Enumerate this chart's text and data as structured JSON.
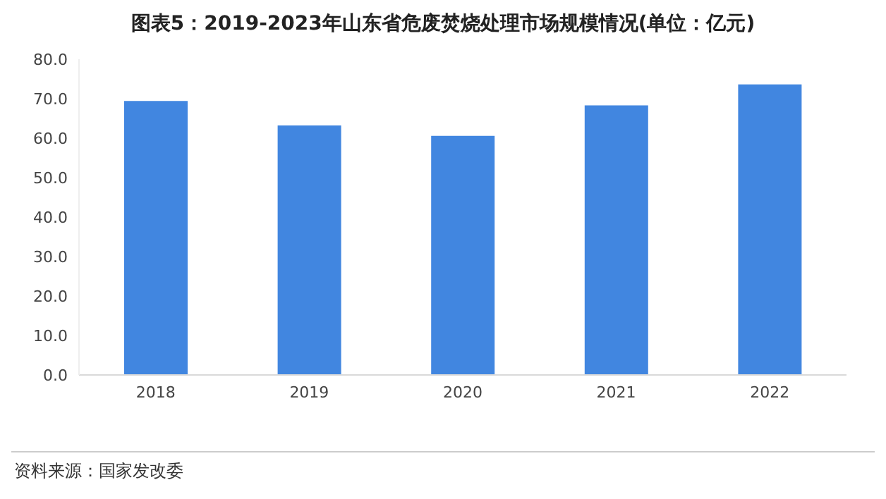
{
  "chart_data": {
    "type": "bar",
    "title": "图表5：2019-2023年山东省危废焚烧处理市场规模情况(单位：亿元)",
    "categories": [
      "2018",
      "2019",
      "2020",
      "2021",
      "2022"
    ],
    "values": [
      69.4,
      63.2,
      60.6,
      68.3,
      73.6
    ],
    "color": "#4186e0",
    "ylim": [
      0,
      80
    ],
    "yticks": [
      {
        "value": 0,
        "label": "0.0"
      },
      {
        "value": 10,
        "label": "10.0"
      },
      {
        "value": 20,
        "label": "20.0"
      },
      {
        "value": 30,
        "label": "30.0"
      },
      {
        "value": 40,
        "label": "40.0"
      },
      {
        "value": 50,
        "label": "50.0"
      },
      {
        "value": 60,
        "label": "60.0"
      },
      {
        "value": 70,
        "label": "70.0"
      },
      {
        "value": 80,
        "label": "80.0"
      }
    ],
    "grid": false,
    "legend": false,
    "annotations": [
      "资料来源：国家发改委"
    ]
  }
}
